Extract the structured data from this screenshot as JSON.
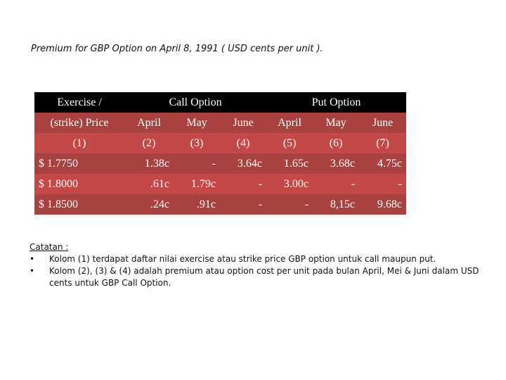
{
  "title": "Premium for GBP Option on April 8, 1991 ( USD cents per unit ).",
  "table": {
    "header": {
      "exercise": "Exercise  /",
      "call_option": "Call Option",
      "put_option": "Put Option"
    },
    "subheader": [
      "(strike) Price",
      "April",
      "May",
      "June",
      "April",
      "May",
      "June"
    ],
    "column_numbers": [
      "(1)",
      "(2)",
      "(3)",
      "(4)",
      "(5)",
      "(6)",
      "(7)"
    ],
    "rows": [
      [
        "$ 1.7750",
        "1.38c",
        "-",
        "3.64c",
        "1.65c",
        "3.68c",
        "4.75c"
      ],
      [
        "$ 1.8000",
        ".61c",
        "1.79c",
        "-",
        "3.00c",
        "-",
        "-"
      ],
      [
        "$ 1.8500",
        ".24c",
        ".91c",
        "-",
        "-",
        "8,15c",
        "9.68c"
      ]
    ]
  },
  "notes": {
    "title": "Catatan :",
    "items": [
      "Kolom (1) terdapat daftar nilai exercise atau strike price GBP option untuk call maupun put.",
      "Kolom (2), (3) & (4) adalah premium atau option cost per unit pada bulan April, Mei & Juni dalam USD cents untuk GBP Call Option."
    ]
  },
  "colors": {
    "header_bg": "#000000",
    "row_dark": "#a9413f",
    "row_light": "#c44846",
    "text": "#ffffff"
  }
}
